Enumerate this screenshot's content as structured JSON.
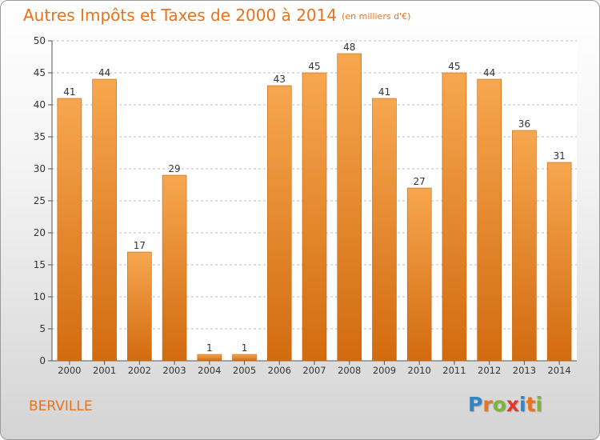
{
  "title": "Autres Impôts et Taxes de 2000 à 2014",
  "unit_note": "(en milliers d'€)",
  "commune": "BERVILLE",
  "logo": {
    "text": "Proxiti",
    "letters": [
      {
        "ch": "P",
        "color": "#2f86c8"
      },
      {
        "ch": "r",
        "color": "#e8731c"
      },
      {
        "ch": "o",
        "color": "#7ab833"
      },
      {
        "ch": "x",
        "color": "#e23a2a"
      },
      {
        "ch": "i",
        "color": "#2f86c8"
      },
      {
        "ch": "t",
        "color": "#e8731c"
      },
      {
        "ch": "i",
        "color": "#7ab833"
      }
    ]
  },
  "colors": {
    "bar_light": "#f7a74f",
    "bar_dark": "#d26b10",
    "accent": "#e8731c",
    "grid": "#bdbdbd"
  },
  "chart_data": {
    "type": "bar",
    "categories": [
      "2000",
      "2001",
      "2002",
      "2003",
      "2004",
      "2005",
      "2006",
      "2007",
      "2008",
      "2009",
      "2010",
      "2011",
      "2012",
      "2013",
      "2014"
    ],
    "values": [
      41,
      44,
      17,
      29,
      1,
      1,
      43,
      45,
      48,
      41,
      27,
      45,
      44,
      36,
      31
    ],
    "ylim": [
      0,
      50
    ],
    "yticks": [
      0,
      5,
      10,
      15,
      20,
      25,
      30,
      35,
      40,
      45,
      50
    ],
    "grid": true,
    "data_labels": true
  }
}
